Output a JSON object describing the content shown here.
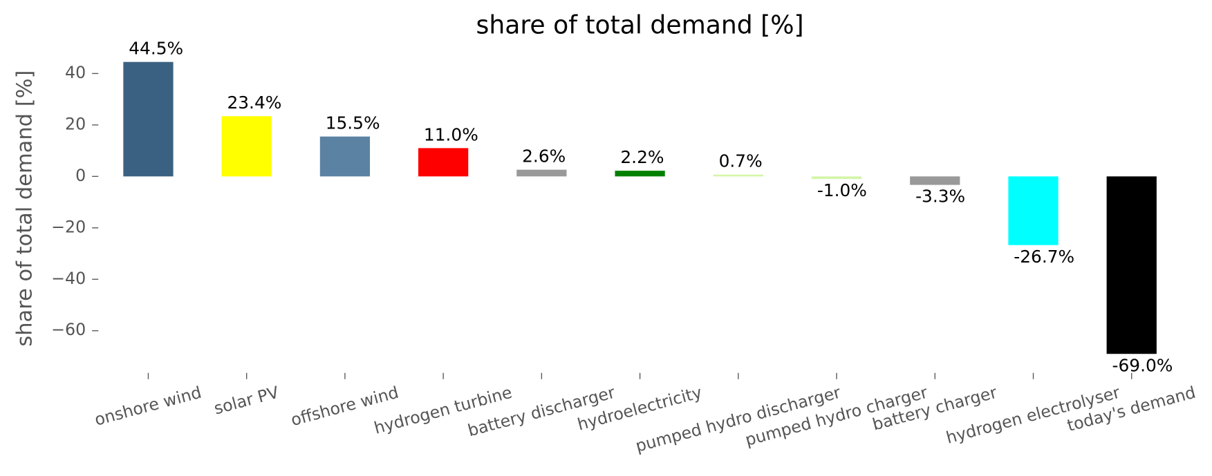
{
  "chart_data": {
    "type": "bar",
    "title": "share of total demand [%]",
    "y_label": "share of total demand [%]",
    "categories": [
      "onshore wind",
      "solar PV",
      "offshore wind",
      "hydrogen turbine",
      "battery discharger",
      "hydroelectricity",
      "pumped hydro discharger",
      "pumped hydro charger",
      "battery charger",
      "hydrogen electrolyser",
      "today's demand"
    ],
    "values": [
      44.5,
      23.4,
      15.5,
      11.0,
      2.6,
      2.2,
      0.7,
      -1.0,
      -3.3,
      -26.7,
      -69.0
    ],
    "value_labels": [
      "44.5%",
      "23.4%",
      "15.5%",
      "11.0%",
      "2.6%",
      "2.2%",
      "0.7%",
      "-1.0%",
      "-3.3%",
      "-26.7%",
      "-69.0%"
    ],
    "colors": [
      "#3b6182",
      "#ffff00",
      "#5b82a3",
      "#ff0000",
      "#999999",
      "#008000",
      "#d4f5a8",
      "#d4f5a8",
      "#999999",
      "#00ffff",
      "#000000"
    ],
    "ylim": [
      -76.4,
      47.3
    ],
    "yticks": [
      {
        "value": -60,
        "label": "−60"
      },
      {
        "value": -40,
        "label": "−40"
      },
      {
        "value": -20,
        "label": "−20"
      },
      0,
      20,
      40
    ],
    "grid": false
  }
}
